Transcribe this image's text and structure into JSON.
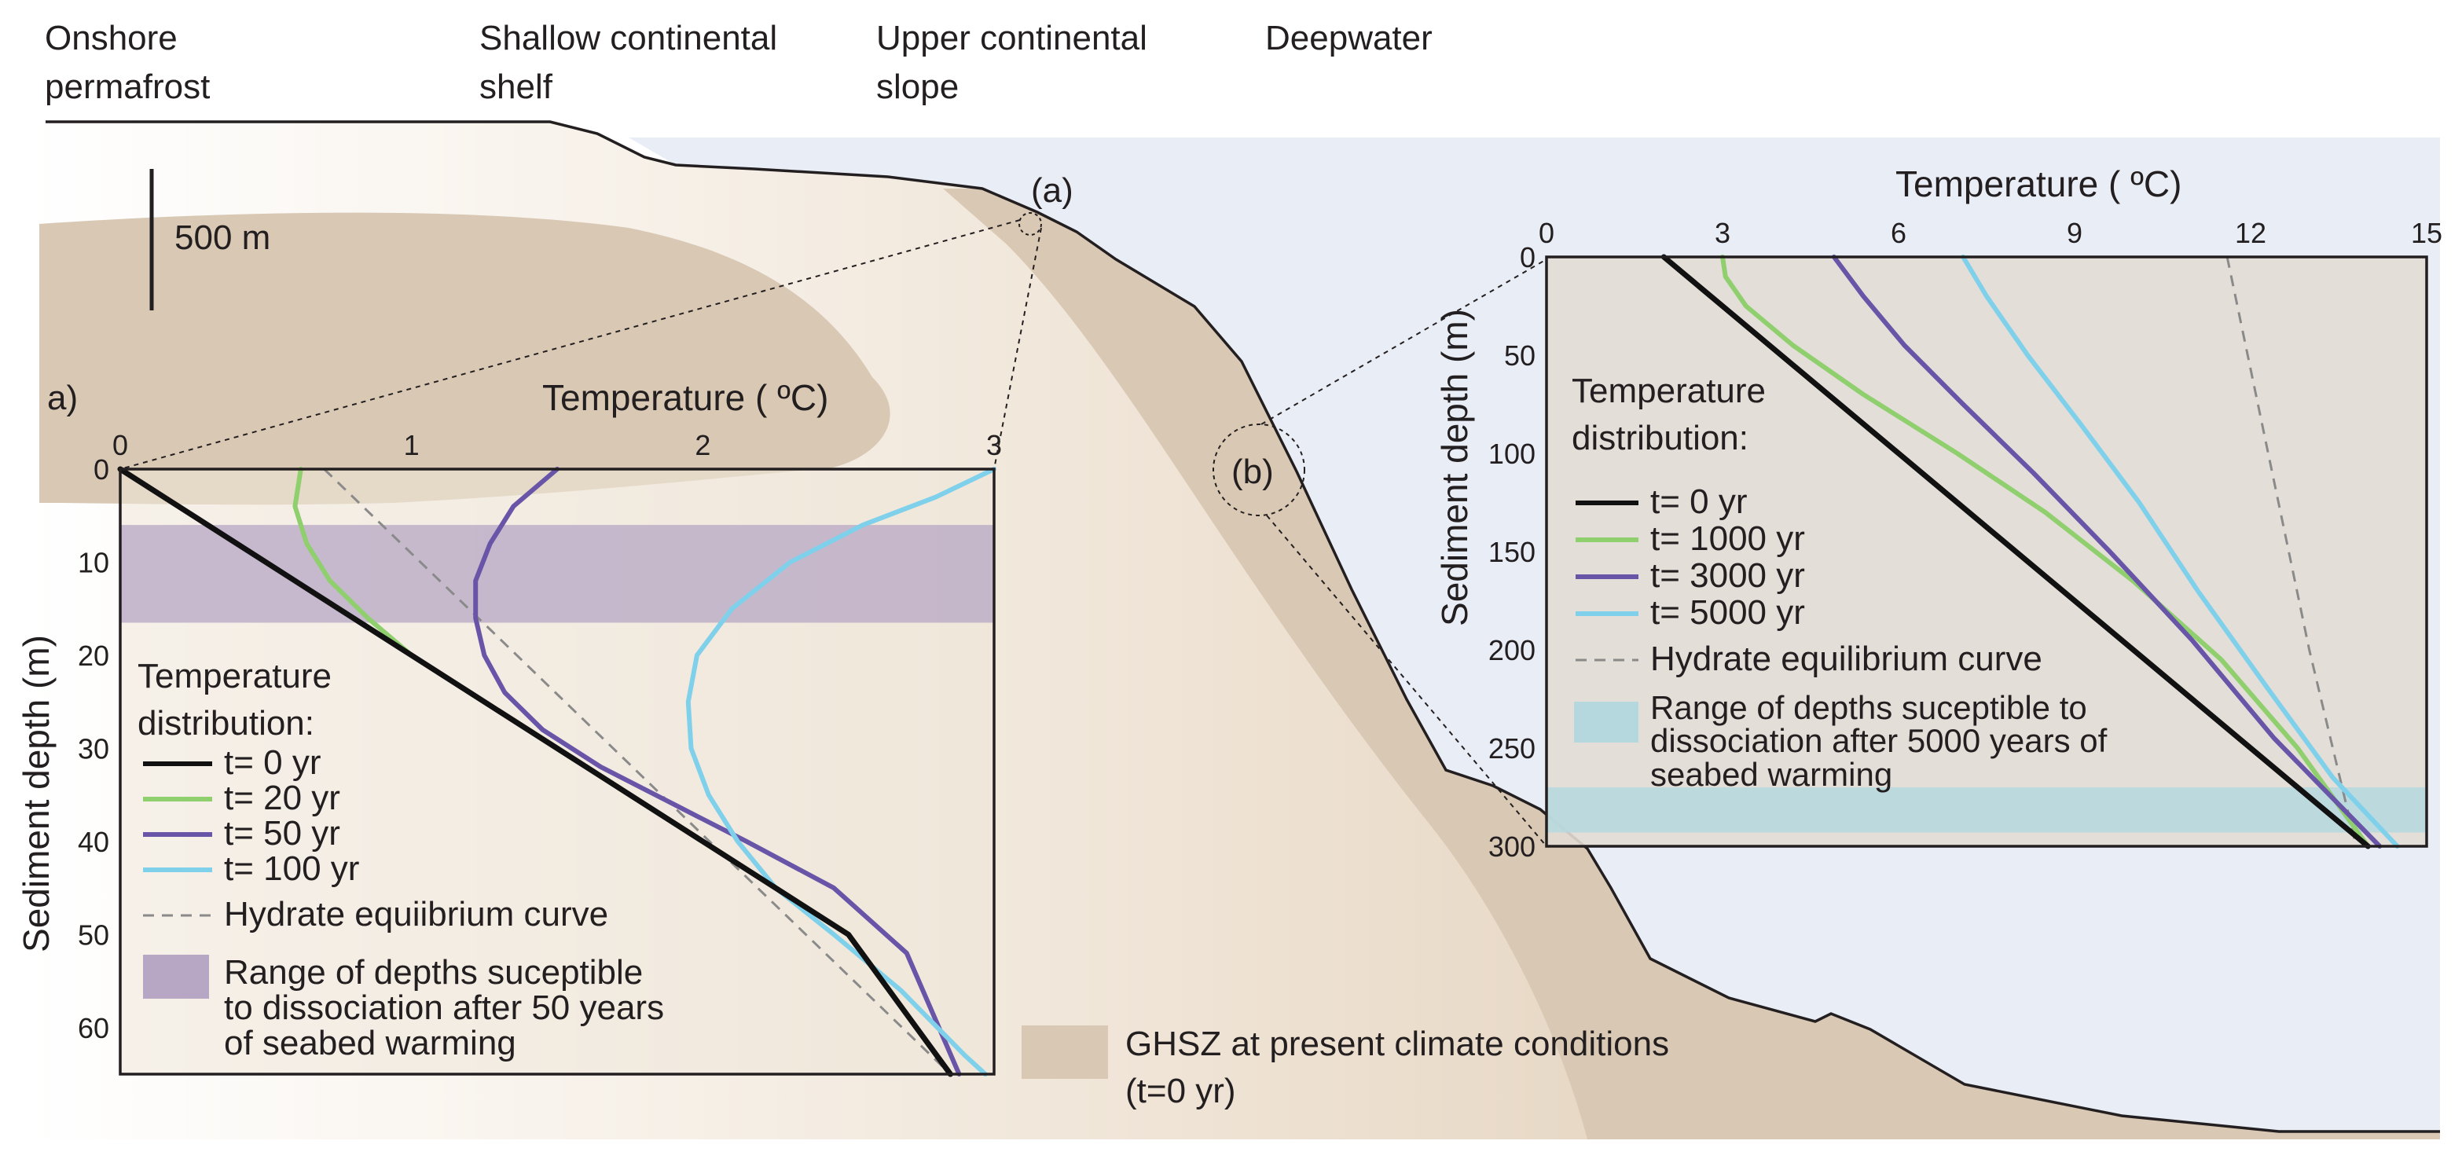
{
  "zones": [
    {
      "line1": "Onshore",
      "line2": "permafrost"
    },
    {
      "line1": "Shallow continental",
      "line2": "shelf"
    },
    {
      "line1": "Upper continental",
      "line2": "slope"
    },
    {
      "line1": "Deepwater",
      "line2": ""
    }
  ],
  "scale_bar": "500 m",
  "callout_a": "(a)",
  "callout_b": "(b)",
  "panel_a_letter": "a)",
  "ghsz_legend": {
    "line1": "GHSZ at present climate conditions",
    "line2": "(t=0 yr)"
  },
  "colors": {
    "sea": "#e9edf6",
    "ghsz": "#d9c9b4",
    "seabed_line": "#231f20",
    "t0": "#111111",
    "t1": "#8fcf6e",
    "t2": "#6955a8",
    "t3": "#7fd0ea",
    "hydrate": "#8a8a8a",
    "range_a": "#b7a7c4",
    "range_b": "#b5d8de"
  },
  "chart_data": [
    {
      "id": "panel_a",
      "type": "line",
      "xlabel": "Temperature ( ºC)",
      "ylabel": "Sediment depth (m)",
      "xlim": [
        0,
        3
      ],
      "ylim": [
        0,
        65
      ],
      "x_ticks": [
        "0",
        "1",
        "2",
        "3"
      ],
      "y_ticks": [
        "0",
        "10",
        "20",
        "30",
        "40",
        "50",
        "60"
      ],
      "legend_title_1": "Temperature",
      "legend_title_2": "distribution:",
      "series": [
        {
          "name": "t= 0 yr",
          "points": [
            [
              0,
              0
            ],
            [
              0.5,
              10
            ],
            [
              1.0,
              20
            ],
            [
              1.5,
              30
            ],
            [
              2.0,
              40
            ],
            [
              2.5,
              50
            ],
            [
              2.85,
              65
            ]
          ]
        },
        {
          "name": "t= 20 yr",
          "points": [
            [
              0.62,
              0
            ],
            [
              0.6,
              4
            ],
            [
              0.64,
              8
            ],
            [
              0.72,
              12
            ],
            [
              0.85,
              16
            ],
            [
              1.0,
              20
            ],
            [
              1.2,
              24
            ],
            [
              1.5,
              30
            ],
            [
              2.0,
              40
            ],
            [
              2.5,
              50
            ],
            [
              2.85,
              65
            ]
          ]
        },
        {
          "name": "t= 50 yr",
          "points": [
            [
              1.5,
              0
            ],
            [
              1.35,
              4
            ],
            [
              1.27,
              8
            ],
            [
              1.22,
              12
            ],
            [
              1.22,
              16
            ],
            [
              1.25,
              20
            ],
            [
              1.32,
              24
            ],
            [
              1.45,
              28
            ],
            [
              1.65,
              32
            ],
            [
              1.9,
              36
            ],
            [
              2.15,
              40
            ],
            [
              2.45,
              45
            ],
            [
              2.7,
              52
            ],
            [
              2.88,
              65
            ]
          ]
        },
        {
          "name": "t= 100 yr",
          "points": [
            [
              3.0,
              0
            ],
            [
              2.8,
              3
            ],
            [
              2.55,
              6
            ],
            [
              2.3,
              10
            ],
            [
              2.1,
              15
            ],
            [
              1.98,
              20
            ],
            [
              1.95,
              25
            ],
            [
              1.96,
              30
            ],
            [
              2.02,
              35
            ],
            [
              2.12,
              40
            ],
            [
              2.25,
              45
            ],
            [
              2.45,
              50
            ],
            [
              2.68,
              56
            ],
            [
              2.9,
              63
            ],
            [
              2.97,
              65
            ]
          ]
        }
      ],
      "hydrate_curve": {
        "name": "Hydrate equiibrium curve",
        "points": [
          [
            0.7,
            0
          ],
          [
            2.85,
            65
          ]
        ]
      },
      "shaded_range": {
        "label_1": "Range of depths suceptible",
        "label_2": "to dissociation after 50 years",
        "label_3": "of seabed warming",
        "y_from": 6,
        "y_to": 16.5
      }
    },
    {
      "id": "panel_b",
      "type": "line",
      "xlabel": "Temperature ( ºC)",
      "ylabel": "Sediment depth (m)",
      "xlim": [
        0,
        15
      ],
      "ylim": [
        0,
        300
      ],
      "x_ticks": [
        "0",
        "3",
        "6",
        "9",
        "12",
        "15"
      ],
      "y_ticks": [
        "0",
        "50",
        "100",
        "150",
        "200",
        "250",
        "300"
      ],
      "legend_title_1": "Temperature",
      "legend_title_2": "distribution:",
      "series": [
        {
          "name": "t= 0 yr",
          "points": [
            [
              2,
              0
            ],
            [
              14,
              300
            ]
          ]
        },
        {
          "name": "t= 1000 yr",
          "points": [
            [
              3,
              0
            ],
            [
              3.05,
              10
            ],
            [
              3.4,
              25
            ],
            [
              4.2,
              45
            ],
            [
              5.4,
              70
            ],
            [
              7,
              100
            ],
            [
              8.5,
              130
            ],
            [
              10,
              165
            ],
            [
              11.5,
              205
            ],
            [
              12.8,
              250
            ],
            [
              14,
              300
            ]
          ]
        },
        {
          "name": "t= 3000 yr",
          "points": [
            [
              4.9,
              0
            ],
            [
              5.4,
              20
            ],
            [
              6.1,
              45
            ],
            [
              7.1,
              75
            ],
            [
              8.3,
              110
            ],
            [
              9.6,
              150
            ],
            [
              11,
              195
            ],
            [
              12.4,
              245
            ],
            [
              14.2,
              300
            ]
          ]
        },
        {
          "name": "t= 5000 yr",
          "points": [
            [
              7.1,
              0
            ],
            [
              7.5,
              20
            ],
            [
              8.2,
              50
            ],
            [
              9.1,
              85
            ],
            [
              10.1,
              125
            ],
            [
              11.1,
              170
            ],
            [
              12.3,
              220
            ],
            [
              13.4,
              265
            ],
            [
              14.5,
              300
            ]
          ]
        }
      ],
      "hydrate_curve": {
        "name": "Hydrate equilibrium curve",
        "points": [
          [
            11.6,
            0
          ],
          [
            12.3,
            100
          ],
          [
            13,
            200
          ],
          [
            13.8,
            300
          ]
        ]
      },
      "shaded_range": {
        "label_1": "Range of depths suceptible to",
        "label_2": "dissociation after 5000 years of",
        "label_3": "seabed warming",
        "y_from": 270,
        "y_to": 293
      }
    }
  ]
}
